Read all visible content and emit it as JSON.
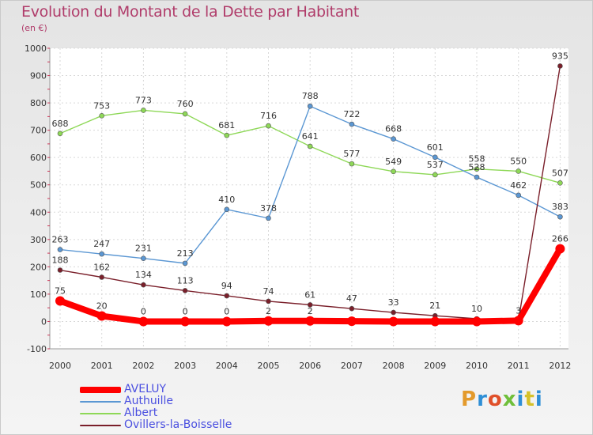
{
  "title": "Evolution du Montant de la Dette par Habitant",
  "subtitle": "(en €)",
  "logo": {
    "text": "Proxiti",
    "letter_colors": [
      "#e39a2c",
      "#2f8fd6",
      "#e0502a",
      "#6fbf3a",
      "#2f8fd6",
      "#d6c12a",
      "#2f8fd6"
    ]
  },
  "chart_data": {
    "type": "line",
    "title": "Evolution du Montant de la Dette par Habitant",
    "subtitle": "(en €)",
    "x": [
      "2000",
      "2001",
      "2002",
      "2003",
      "2004",
      "2005",
      "2006",
      "2007",
      "2008",
      "2009",
      "2010",
      "2011",
      "2012"
    ],
    "ylim": [
      -100,
      1000
    ],
    "yticks": [
      -100,
      0,
      100,
      200,
      300,
      400,
      500,
      600,
      700,
      800,
      900,
      1000
    ],
    "grid": true,
    "legend": "bottom-left",
    "series": [
      {
        "name": "AVELUY",
        "color": "#ff0000",
        "values": [
          75,
          20,
          0,
          0,
          0,
          2,
          2,
          1,
          0,
          0,
          0,
          3,
          266
        ],
        "labels": [
          "75",
          "20",
          "0",
          "0",
          "0",
          "2",
          "2",
          "",
          "",
          "",
          "",
          "",
          "266"
        ]
      },
      {
        "name": "Authuille",
        "color": "#5b97d3",
        "values": [
          263,
          247,
          231,
          213,
          410,
          378,
          788,
          722,
          668,
          601,
          528,
          462,
          383
        ],
        "labels": [
          "263",
          "247",
          "231",
          "213",
          "410",
          "378",
          "788",
          "722",
          "668",
          "601",
          "528",
          "462",
          "383"
        ]
      },
      {
        "name": "Albert",
        "color": "#8ed857",
        "values": [
          688,
          753,
          773,
          760,
          681,
          716,
          641,
          577,
          549,
          537,
          558,
          550,
          507
        ],
        "labels": [
          "688",
          "753",
          "773",
          "760",
          "681",
          "716",
          "641",
          "577",
          "549",
          "537",
          "558",
          "550",
          "507"
        ]
      },
      {
        "name": "Ovillers-la-Boisselle",
        "color": "#7a1f2a",
        "values": [
          188,
          162,
          134,
          113,
          94,
          74,
          61,
          47,
          33,
          21,
          10,
          3,
          935
        ],
        "labels": [
          "188",
          "162",
          "134",
          "113",
          "94",
          "74",
          "61",
          "47",
          "33",
          "21",
          "10",
          "3",
          "935"
        ]
      }
    ]
  }
}
